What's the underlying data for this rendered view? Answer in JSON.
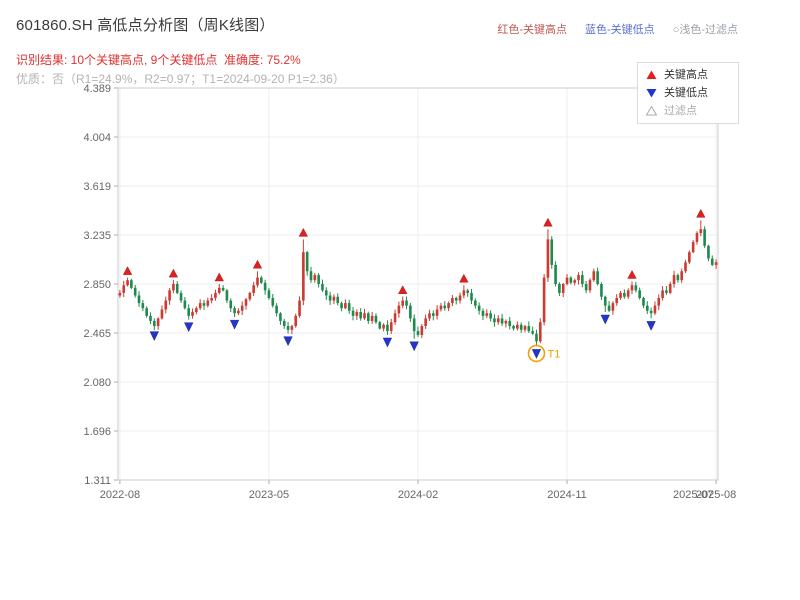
{
  "header": {
    "title": "601860.SH 高低点分析图（周K线图）",
    "top_legend": [
      {
        "label": "红色-关键高点",
        "color": "#c05a52"
      },
      {
        "label": "蓝色-关键低点",
        "color": "#5b6fd6"
      },
      {
        "label": "○浅色-过滤点",
        "color": "#9aa0a6"
      }
    ],
    "result_line": "识别结果: 10个关键高点, 9个关键低点  准确度: 75.2%",
    "result_color": "#e03131",
    "quality_line": "优质：否（R1=24.9%，R2=0.97；T1=2024-09-20 P1=2.36）",
    "quality_color": "#b3b3b3",
    "stats": {
      "key_high_count": 10,
      "key_low_count": 9,
      "accuracy": "75.2%",
      "R1": "24.9%",
      "R2": "0.97",
      "T1": "2024-09-20",
      "P1": "2.36"
    }
  },
  "chart_data": {
    "type": "candlestick",
    "symbol": "601860.SH",
    "period": "weekly",
    "title": "601860.SH 高低点分析图（周K线图）",
    "ylim": [
      1.311,
      4.389
    ],
    "y_ticks": [
      "4.389",
      "4.004",
      "3.619",
      "3.235",
      "2.850",
      "2.465",
      "2.080",
      "1.696",
      "1.311"
    ],
    "x_ticks": [
      {
        "index": 0,
        "label": "2022-08",
        "grid": true
      },
      {
        "index": 39,
        "label": "2023-05",
        "grid": true
      },
      {
        "index": 78,
        "label": "2024-02",
        "grid": true
      },
      {
        "index": 117,
        "label": "2024-11",
        "grid": true
      },
      {
        "index": 150,
        "label": "2025-07",
        "grid": false
      },
      {
        "index": 156,
        "label": "2025-08",
        "grid": true
      }
    ],
    "closes": [
      2.78,
      2.84,
      2.88,
      2.82,
      2.76,
      2.7,
      2.66,
      2.6,
      2.56,
      2.52,
      2.58,
      2.65,
      2.72,
      2.8,
      2.85,
      2.78,
      2.72,
      2.66,
      2.6,
      2.63,
      2.66,
      2.7,
      2.68,
      2.72,
      2.74,
      2.78,
      2.82,
      2.8,
      2.72,
      2.66,
      2.62,
      2.64,
      2.68,
      2.73,
      2.78,
      2.84,
      2.9,
      2.86,
      2.8,
      2.74,
      2.68,
      2.62,
      2.56,
      2.52,
      2.49,
      2.52,
      2.6,
      2.72,
      3.1,
      2.95,
      2.88,
      2.92,
      2.85,
      2.8,
      2.76,
      2.72,
      2.75,
      2.7,
      2.66,
      2.7,
      2.64,
      2.6,
      2.63,
      2.58,
      2.62,
      2.56,
      2.6,
      2.55,
      2.5,
      2.53,
      2.48,
      2.55,
      2.62,
      2.68,
      2.72,
      2.68,
      2.58,
      2.48,
      2.45,
      2.52,
      2.58,
      2.62,
      2.6,
      2.65,
      2.68,
      2.66,
      2.7,
      2.74,
      2.72,
      2.76,
      2.8,
      2.78,
      2.72,
      2.68,
      2.64,
      2.6,
      2.62,
      2.58,
      2.55,
      2.58,
      2.54,
      2.56,
      2.52,
      2.5,
      2.53,
      2.49,
      2.52,
      2.48,
      2.46,
      2.4,
      2.55,
      2.9,
      3.2,
      3.0,
      2.85,
      2.78,
      2.85,
      2.9,
      2.86,
      2.88,
      2.92,
      2.85,
      2.8,
      2.88,
      2.95,
      2.85,
      2.75,
      2.68,
      2.64,
      2.7,
      2.74,
      2.78,
      2.75,
      2.8,
      2.84,
      2.8,
      2.74,
      2.68,
      2.64,
      2.62,
      2.68,
      2.74,
      2.8,
      2.78,
      2.85,
      2.92,
      2.88,
      2.95,
      3.02,
      3.1,
      3.18,
      3.25,
      3.28,
      3.15,
      3.05,
      3.0,
      3.02
    ],
    "key_highs": [
      {
        "index": 2,
        "price": 2.9
      },
      {
        "index": 14,
        "price": 2.88
      },
      {
        "index": 26,
        "price": 2.85
      },
      {
        "index": 36,
        "price": 2.95
      },
      {
        "index": 48,
        "price": 3.2
      },
      {
        "index": 74,
        "price": 2.75
      },
      {
        "index": 90,
        "price": 2.84
      },
      {
        "index": 112,
        "price": 3.28
      },
      {
        "index": 134,
        "price": 2.87
      },
      {
        "index": 152,
        "price": 3.35
      }
    ],
    "key_lows": [
      {
        "index": 9,
        "price": 2.5
      },
      {
        "index": 18,
        "price": 2.57
      },
      {
        "index": 30,
        "price": 2.59
      },
      {
        "index": 44,
        "price": 2.46
      },
      {
        "index": 70,
        "price": 2.45
      },
      {
        "index": 77,
        "price": 2.42
      },
      {
        "index": 109,
        "price": 2.36
      },
      {
        "index": 127,
        "price": 2.63
      },
      {
        "index": 139,
        "price": 2.58
      }
    ],
    "annotation": {
      "index": 109,
      "price": 2.36,
      "label": "T1",
      "color": "#f59f00"
    },
    "colors": {
      "up": "#cc3b30",
      "down": "#1e8a4e",
      "high_marker": "#e02020",
      "low_marker": "#2236cc",
      "filtered_marker": "#aaaaaa",
      "grid": "#ececec",
      "axis": "#666666",
      "border": "#cccccc"
    },
    "legend": [
      {
        "label": "关键高点",
        "marker": "up-triangle"
      },
      {
        "label": "关键低点",
        "marker": "down-triangle"
      },
      {
        "label": "过滤点",
        "marker": "open-triangle"
      }
    ]
  }
}
